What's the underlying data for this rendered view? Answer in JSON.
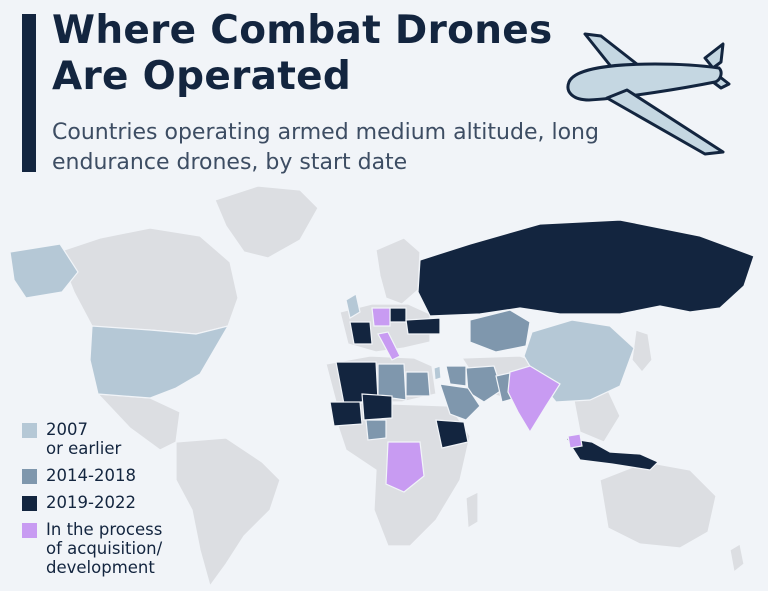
{
  "header": {
    "title": "Where Combat Drones Are Operated",
    "subtitle": "Countries operating armed medium altitude, long endurance drones, by start date"
  },
  "legend": [
    {
      "label": "2007\nor earlier",
      "color": "#b5c8d6"
    },
    {
      "label": "2014-2018",
      "color": "#7f97ad"
    },
    {
      "label": "2019-2022",
      "color": "#13253f"
    },
    {
      "label": "In the process\nof acquisition/\ndevelopment",
      "color": "#c89bf2"
    }
  ],
  "colors": {
    "background": "#f1f4f8",
    "no_data": "#dcdee2",
    "accent": "#13253f"
  },
  "icons": [
    "drone-illustration-icon"
  ],
  "map_regions": [
    {
      "name": "United States",
      "category": "2007 or earlier"
    },
    {
      "name": "United Kingdom",
      "category": "2007 or earlier"
    },
    {
      "name": "Israel",
      "category": "2007 or earlier"
    },
    {
      "name": "China",
      "category": "2007 or earlier"
    },
    {
      "name": "Kazakhstan",
      "category": "2014-2018"
    },
    {
      "name": "Iran",
      "category": "2014-2018"
    },
    {
      "name": "Saudi Arabia",
      "category": "2014-2018"
    },
    {
      "name": "Iraq",
      "category": "2014-2018"
    },
    {
      "name": "Egypt",
      "category": "2014-2018"
    },
    {
      "name": "Libya",
      "category": "2014-2018"
    },
    {
      "name": "Nigeria",
      "category": "2014-2018"
    },
    {
      "name": "Pakistan",
      "category": "2014-2018"
    },
    {
      "name": "Russia",
      "category": "2019-2022"
    },
    {
      "name": "France",
      "category": "2019-2022"
    },
    {
      "name": "Ukraine",
      "category": "2019-2022"
    },
    {
      "name": "Poland",
      "category": "2019-2022"
    },
    {
      "name": "Algeria",
      "category": "2019-2022"
    },
    {
      "name": "Mali",
      "category": "2019-2022"
    },
    {
      "name": "Niger",
      "category": "2019-2022"
    },
    {
      "name": "Ethiopia",
      "category": "2019-2022"
    },
    {
      "name": "Indonesia",
      "category": "2019-2022"
    },
    {
      "name": "Germany",
      "category": "In the process of acquisition/development"
    },
    {
      "name": "Italy",
      "category": "In the process of acquisition/development"
    },
    {
      "name": "India",
      "category": "In the process of acquisition/development"
    },
    {
      "name": "DR Congo",
      "category": "In the process of acquisition/development"
    },
    {
      "name": "Malaysia",
      "category": "In the process of acquisition/development"
    }
  ]
}
